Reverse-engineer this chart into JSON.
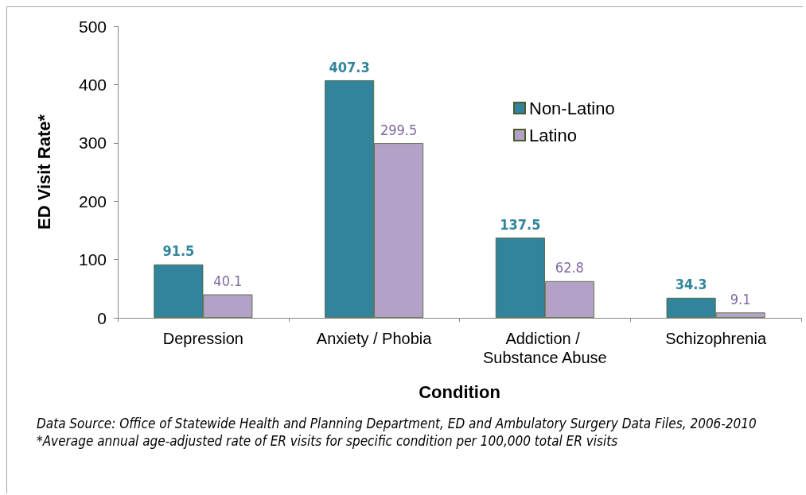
{
  "chart_data": {
    "type": "bar",
    "xlabel": "Condition",
    "ylabel": "ED Visit Rate*",
    "categories": [
      "Depression",
      "Anxiety / Phobia",
      "Addiction / Substance Abuse",
      "Schizophrenia"
    ],
    "series": [
      {
        "name": "Non-Latino",
        "color": "#31849b",
        "values": [
          91.5,
          407.3,
          137.5,
          34.3
        ]
      },
      {
        "name": "Latino",
        "color": "#b3a2c7",
        "values": [
          40.1,
          299.5,
          62.8,
          9.1
        ]
      }
    ],
    "ylim": [
      0,
      500
    ],
    "yticks": [
      0,
      100,
      200,
      300,
      400,
      500
    ],
    "grid": false,
    "legend": "top right",
    "data_labels": true,
    "annotations": [
      "Data Source: Office of Statewide Health and Planning Department,  ED and Ambulatory Surgery Data Files, 2006-2010",
      "*Average annual age-adjusted rate of ER visits for specific condition per 100,000 total ER visits"
    ]
  }
}
